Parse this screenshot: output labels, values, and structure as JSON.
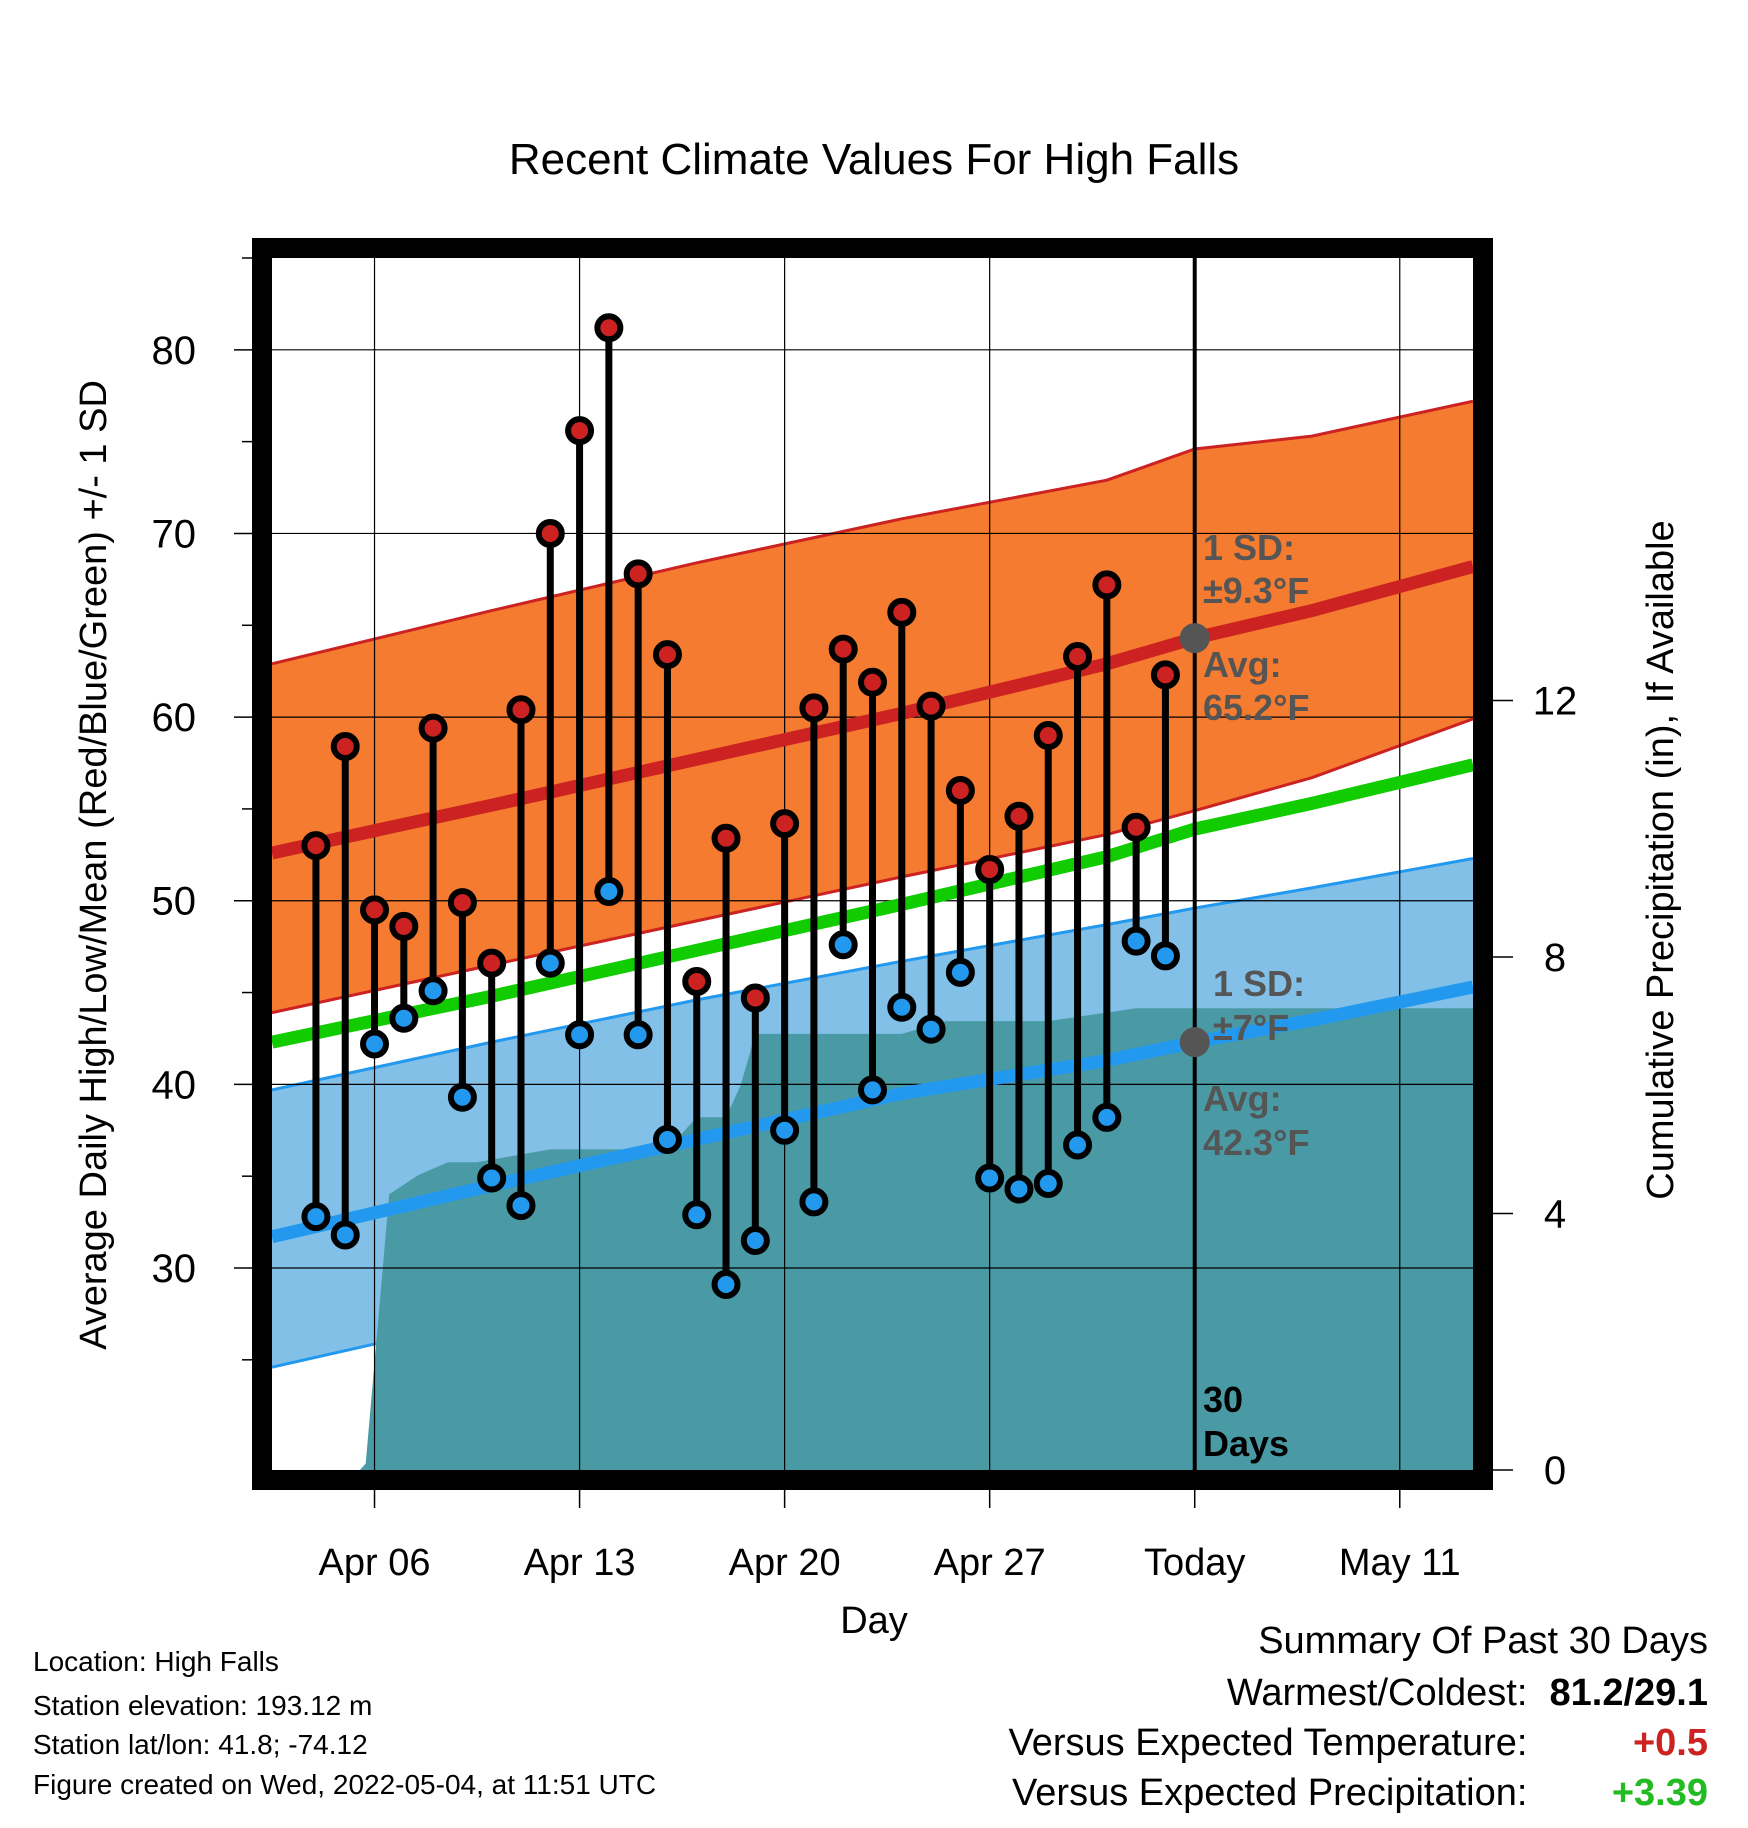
{
  "title": "Recent Climate Values For High Falls",
  "y_left_label": "Average Daily High/Low/Mean (Red/Blue/Green) +/- 1 SD",
  "y_right_label": "Cumulative Precipitation (in), If Available",
  "x_label": "Day",
  "annotations": {
    "high_sd_line1": "1 SD:",
    "high_sd_line2": "±9.3°F",
    "high_avg_line1": "Avg:",
    "high_avg_line2": "65.2°F",
    "low_sd_line1": "1 SD:",
    "low_sd_line2": "±7°F",
    "low_avg_line1": "Avg:",
    "low_avg_line2": "42.3°F",
    "days_line1": "30",
    "days_line2": "Days"
  },
  "info": {
    "location": "Location: High Falls",
    "elevation": "Station elevation: 193.12 m",
    "latlon": "Station lat/lon: 41.8; -74.12",
    "created": "Figure created on Wed, 2022-05-04, at 11:51 UTC"
  },
  "summary": {
    "heading": "Summary Of Past 30 Days",
    "warmest_label": "Warmest/Coldest:",
    "warmest_value": "81.2/29.1",
    "temp_label": "Versus Expected Temperature:",
    "temp_value": "+0.5",
    "precip_label": "Versus Expected Precipitation:",
    "precip_value": "+3.39"
  },
  "colors": {
    "high": "#cc2222",
    "low": "#2299ee",
    "mean": "#11cc00",
    "high_band": "#f47b2f",
    "low_band": "#82c0e8",
    "precip": "#4a9aa5",
    "avg_dot": "#555555",
    "summary_red": "#cc2222",
    "summary_green": "#22bb22"
  },
  "chart_data": {
    "type": "line",
    "x_range_days": [
      -31.5,
      9.5
    ],
    "x_ticks": [
      {
        "day": -28,
        "label": "Apr 06"
      },
      {
        "day": -21,
        "label": "Apr 13"
      },
      {
        "day": -14,
        "label": "Apr 20"
      },
      {
        "day": -7,
        "label": "Apr 27"
      },
      {
        "day": 0,
        "label": "Today"
      },
      {
        "day": 7,
        "label": "May 11"
      }
    ],
    "y_left": {
      "range": [
        19,
        85
      ],
      "ticks": [
        30,
        40,
        50,
        60,
        70,
        80
      ]
    },
    "y_right": {
      "range": [
        0,
        18.9
      ],
      "ticks": [
        0,
        4,
        8,
        12
      ]
    },
    "normals": {
      "day": [
        -31.5,
        -24,
        -17,
        -10,
        -3,
        0,
        4,
        9.5
      ],
      "high_mean": [
        52.6,
        55.2,
        57.7,
        60.2,
        62.9,
        64.3,
        65.8,
        68.2
      ],
      "high_sd_upper": [
        62.9,
        65.8,
        68.4,
        70.8,
        72.9,
        74.6,
        75.3,
        77.2
      ],
      "high_sd_lower": [
        43.9,
        46.5,
        48.9,
        51.3,
        53.6,
        54.9,
        56.7,
        59.9
      ],
      "mean_normal": [
        42.3,
        44.8,
        47.3,
        49.8,
        52.4,
        53.9,
        55.3,
        57.4
      ],
      "low_mean": [
        31.7,
        34.5,
        37.0,
        39.5,
        41.3,
        42.3,
        43.5,
        45.3
      ],
      "low_sd_upper": [
        39.7,
        42.3,
        44.6,
        46.7,
        48.7,
        49.6,
        50.7,
        52.3
      ],
      "low_sd_lower": [
        24.6,
        27.3,
        29.6,
        32.0,
        34.3,
        35.5,
        37.4,
        40.1
      ]
    },
    "series": [
      {
        "name": "High",
        "day": [
          -30,
          -29,
          -28,
          -27,
          -26,
          -25,
          -24,
          -23,
          -22,
          -21,
          -20,
          -19,
          -18,
          -17,
          -16,
          -15,
          -14,
          -13,
          -12,
          -11,
          -10,
          -9,
          -8,
          -7,
          -6,
          -5,
          -4,
          -3,
          -2,
          -1
        ],
        "values": [
          53.0,
          58.4,
          49.5,
          48.6,
          59.4,
          49.9,
          46.6,
          60.4,
          70.0,
          75.6,
          81.2,
          67.8,
          63.4,
          45.6,
          53.4,
          44.7,
          54.2,
          60.5,
          63.7,
          61.9,
          65.7,
          60.6,
          56.0,
          51.7,
          54.6,
          59.0,
          63.3,
          67.2,
          54.0,
          62.3
        ]
      },
      {
        "name": "Low",
        "day": [
          -30,
          -29,
          -28,
          -27,
          -26,
          -25,
          -24,
          -23,
          -22,
          -21,
          -20,
          -19,
          -18,
          -17,
          -16,
          -15,
          -14,
          -13,
          -12,
          -11,
          -10,
          -9,
          -8,
          -7,
          -6,
          -5,
          -4,
          -3,
          -2,
          -1
        ],
        "values": [
          32.8,
          31.8,
          42.2,
          43.6,
          45.1,
          39.3,
          34.9,
          33.4,
          46.6,
          42.7,
          50.5,
          42.7,
          37.0,
          32.9,
          29.1,
          31.5,
          37.5,
          33.6,
          47.6,
          39.7,
          44.2,
          43.0,
          46.1,
          34.9,
          34.3,
          34.6,
          36.7,
          38.2,
          47.8,
          47.0
        ]
      }
    ],
    "precipitation": {
      "day": [
        -31.5,
        -28.5,
        -28.3,
        -27.5,
        -26.5,
        -25.5,
        -24.5,
        -22,
        -18,
        -17,
        -16,
        -15.5,
        -15,
        -11,
        -10,
        -8.5,
        -6,
        -5,
        -2,
        9.5
      ],
      "cumulative_in": [
        0,
        0,
        0.1,
        4.3,
        4.6,
        4.8,
        4.8,
        5.0,
        5.0,
        5.5,
        5.5,
        6.0,
        6.8,
        6.8,
        6.8,
        7.0,
        7.0,
        7.0,
        7.2,
        7.2
      ]
    }
  }
}
